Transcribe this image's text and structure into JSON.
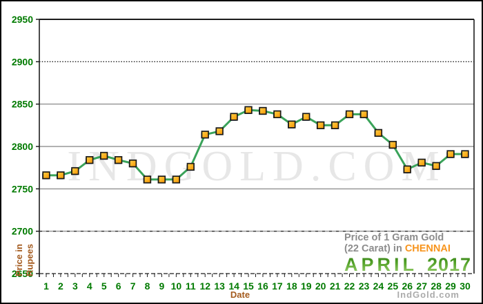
{
  "chart_data": {
    "type": "line",
    "title": "Price of 1 Gram Gold (22 Carat) in CHENNAI - APRIL 2017",
    "xlabel": "Date",
    "ylabel": "Price in Rupees",
    "series_name": "Gold price per gram, 22 carat, Rupees",
    "x": [
      1,
      2,
      3,
      4,
      5,
      6,
      7,
      8,
      9,
      10,
      11,
      12,
      13,
      14,
      15,
      16,
      17,
      18,
      19,
      20,
      21,
      22,
      23,
      24,
      25,
      26,
      27,
      28,
      29,
      30
    ],
    "values": [
      2766,
      2766,
      2771,
      2784,
      2789,
      2784,
      2780,
      2761,
      2761,
      2761,
      2776,
      2814,
      2818,
      2835,
      2843,
      2842,
      2838,
      2826,
      2835,
      2825,
      2825,
      2838,
      2838,
      2816,
      2802,
      2773,
      2781,
      2777,
      2791,
      2791
    ],
    "ylim": [
      2650,
      2950
    ],
    "yticks": [
      2950,
      2900,
      2850,
      2800,
      2750,
      2700,
      2650
    ],
    "grid": true,
    "legend": false,
    "marker": "square",
    "grid_styles": {
      "2950": "solid-dark",
      "2900": "dotted",
      "2850": "solid-gray",
      "2800": "solid-gray",
      "2750": "solid-gray",
      "2700": "gray-dashed-overlay",
      "2650": "dashed-axis"
    }
  },
  "labels": {
    "title_line1": "Price of 1 Gram Gold",
    "title_line2_prefix": "(22 Carat) in",
    "title_line2_highlight": "CHENNAI",
    "month": "APRIL",
    "year": "2017",
    "watermark": "INDGOLD.COM",
    "source": "IndGold.com",
    "xlabel": "Date",
    "ylabel_line1": "Price in",
    "ylabel_line2": "Rupees"
  },
  "colors": {
    "line": "#3aa35a",
    "marker_fill_light": "#ffd24a",
    "marker_fill_dark": "#f79400",
    "marker_border": "#1a1a1a",
    "tick_label": "#007a00",
    "axis_title": "#a35a1e",
    "title_gray": "#8c8c8c",
    "title_orange": "#f7941d",
    "month_green_dark": "#2f7d12",
    "month_green_mid": "#57a52c",
    "month_green_light": "#a6d77c",
    "grid_gray": "#999999",
    "grid_dark": "#1c1c1c",
    "watermark": "#e7e7e7",
    "source_gray": "#ababab"
  }
}
